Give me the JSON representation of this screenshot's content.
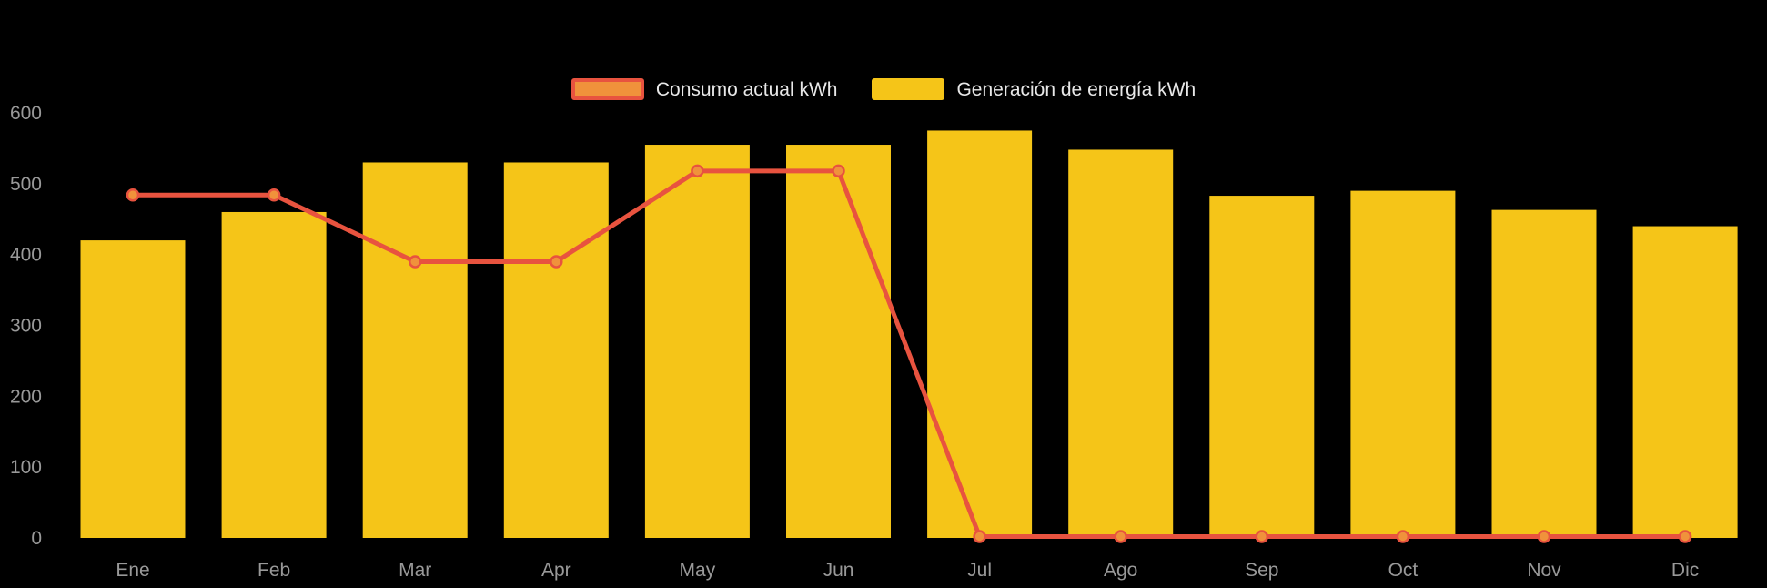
{
  "chart_data": {
    "type": "bar",
    "title": "",
    "xlabel": "",
    "ylabel": "",
    "categories": [
      "Ene",
      "Feb",
      "Mar",
      "Apr",
      "May",
      "Jun",
      "Jul",
      "Ago",
      "Sep",
      "Oct",
      "Nov",
      "Dic"
    ],
    "series": [
      {
        "name": "Consumo actual kWh",
        "type": "line",
        "values": [
          484,
          484,
          390,
          390,
          518,
          518,
          2,
          2,
          2,
          2,
          2,
          2
        ],
        "line_color": "#E8533F",
        "point_fill": "#F0923B",
        "point_border": "#E8533F"
      },
      {
        "name": "Generación de energía kWh",
        "type": "bar",
        "values": [
          420,
          460,
          530,
          530,
          555,
          555,
          575,
          548,
          483,
          490,
          463,
          440
        ],
        "color": "#F5C518"
      }
    ],
    "ylim": [
      0,
      600
    ],
    "yticks": [
      0,
      100,
      200,
      300,
      400,
      500,
      600
    ],
    "legend_position": "top",
    "grid": false,
    "background_color": "#000000",
    "tick_color": "#999999",
    "legend_text_color": "#E8E8E8"
  }
}
